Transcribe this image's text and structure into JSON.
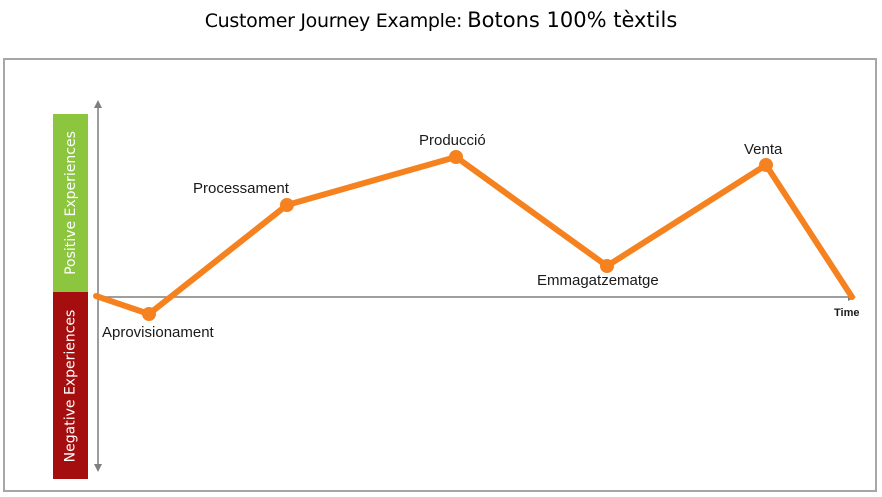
{
  "title": {
    "prefix": "Customer Journey Example:",
    "suffix": "Botons 100% tèxtils"
  },
  "bands": {
    "positive": "Positive Experiences",
    "negative": "Negative Experiences"
  },
  "axis": {
    "x_label": "Time"
  },
  "colors": {
    "line": "#f5821f",
    "positive": "#8cc63f",
    "negative": "#a50e0e",
    "axis": "#7f7f7f",
    "frame": "#a6a6a6"
  },
  "stages": [
    {
      "label": "Aprovisionament"
    },
    {
      "label": "Processament"
    },
    {
      "label": "Producció"
    },
    {
      "label": "Emmagatzematge"
    },
    {
      "label": "Venta"
    }
  ]
}
